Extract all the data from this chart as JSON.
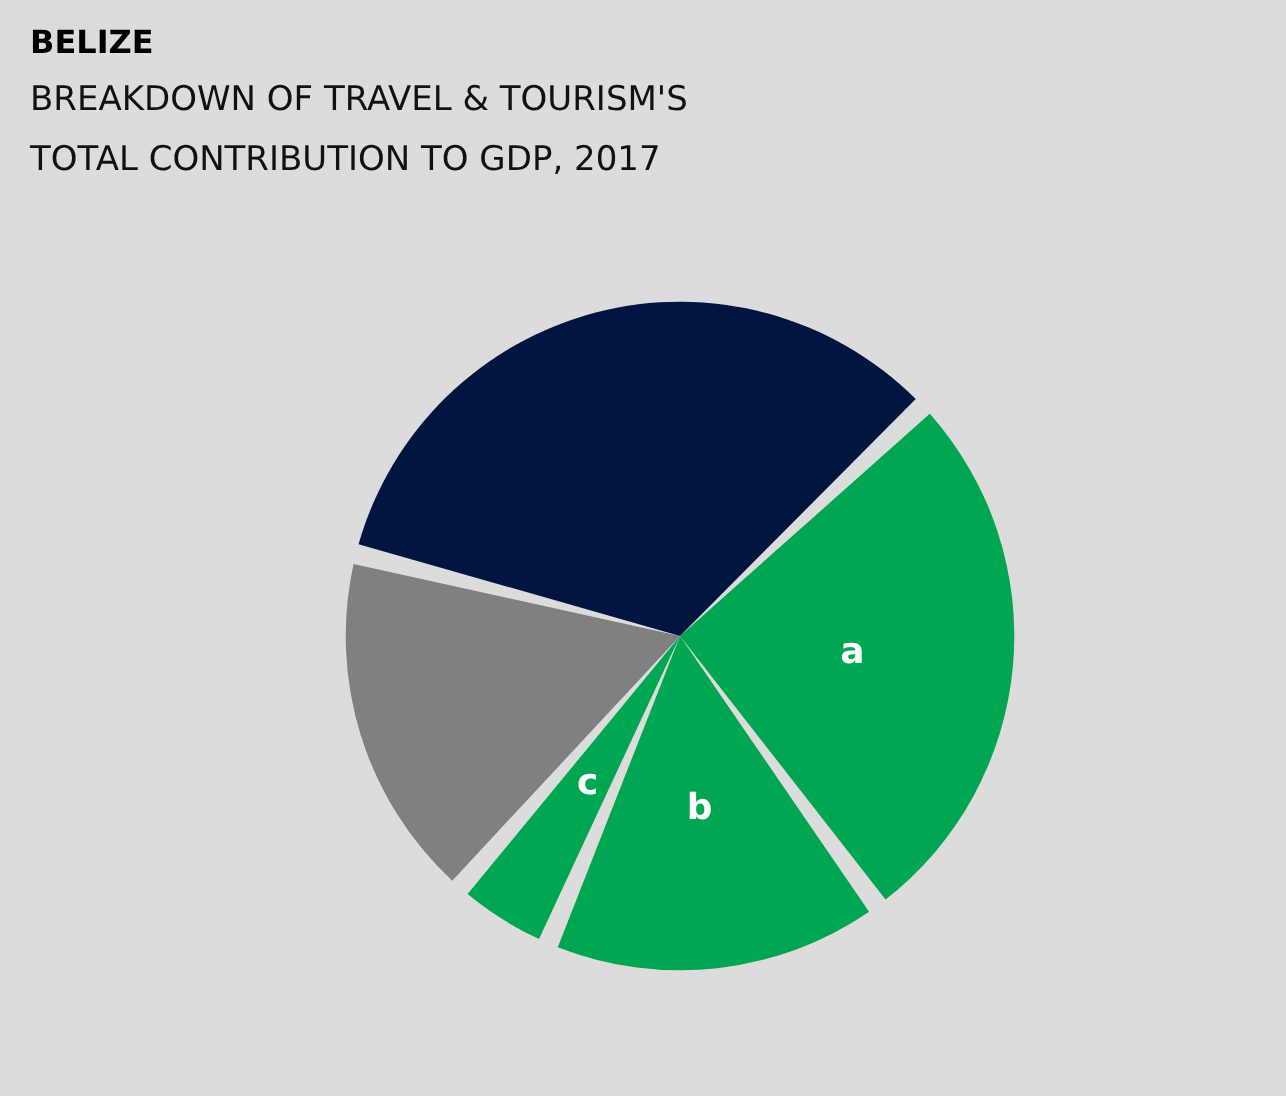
{
  "chart_data": {
    "type": "pie",
    "title": "BELIZE",
    "subtitle": "BREAKDOWN OF TRAVEL & TOURISM'S TOTAL CONTRIBUTION TO GDP, 2017",
    "categories": [
      "a",
      "b",
      "c",
      null,
      null
    ],
    "values": [
      27,
      16.5,
      5,
      17.5,
      34
    ],
    "colors": [
      "#00a651",
      "#00a651",
      "#00a651",
      "#808080",
      "#001540"
    ]
  }
}
